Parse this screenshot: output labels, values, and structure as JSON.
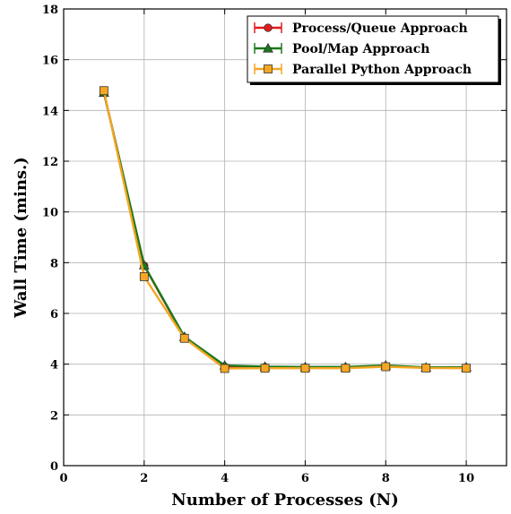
{
  "chart_data": {
    "type": "line",
    "title": "",
    "xlabel": "Number of Processes (N)",
    "ylabel": "Wall Time (mins.)",
    "xlim": [
      0,
      11
    ],
    "ylim": [
      0,
      18
    ],
    "xticks": [
      0,
      2,
      4,
      6,
      8,
      10
    ],
    "yticks": [
      0,
      2,
      4,
      6,
      8,
      10,
      12,
      14,
      16,
      18
    ],
    "grid": true,
    "legend_position": "top-right",
    "x": [
      1,
      2,
      3,
      4,
      5,
      6,
      7,
      8,
      9,
      10
    ],
    "series": [
      {
        "name": "Process/Queue Approach",
        "color": "#e31a1c",
        "marker": "circle",
        "values": [
          14.72,
          7.88,
          5.05,
          3.9,
          3.88,
          3.87,
          3.87,
          3.92,
          3.86,
          3.86
        ]
      },
      {
        "name": "Pool/Map Approach",
        "color": "#1a7a1a",
        "marker": "triangle",
        "values": [
          14.7,
          7.9,
          5.08,
          3.95,
          3.9,
          3.89,
          3.89,
          3.95,
          3.87,
          3.88
        ]
      },
      {
        "name": "Parallel Python Approach",
        "color": "#f5a623",
        "marker": "square",
        "values": [
          14.78,
          7.45,
          5.02,
          3.83,
          3.84,
          3.84,
          3.84,
          3.9,
          3.85,
          3.84
        ]
      }
    ]
  }
}
